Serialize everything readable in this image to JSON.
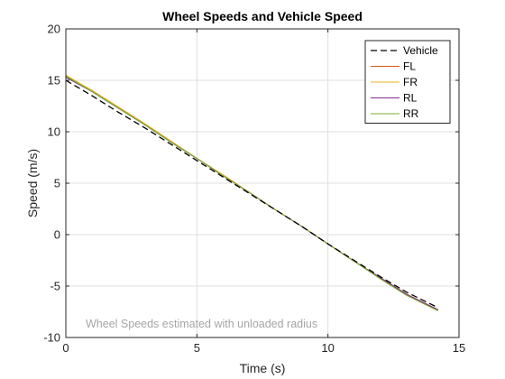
{
  "chart_data": {
    "type": "line",
    "title": "Wheel Speeds and Vehicle Speed",
    "xlabel": "Time (s)",
    "ylabel": "Speed (m/s)",
    "xlim": [
      0,
      15
    ],
    "ylim": [
      -10,
      20
    ],
    "xticks": [
      0,
      5,
      10,
      15
    ],
    "yticks": [
      -10,
      -5,
      0,
      5,
      10,
      15,
      20
    ],
    "xtick_labels": [
      "0",
      "5",
      "10",
      "15"
    ],
    "ytick_labels": [
      "-10",
      "-5",
      "0",
      "5",
      "10",
      "15",
      "20"
    ],
    "grid": true,
    "legend_position": "top-right",
    "annotation": "Wheel Speeds estimated with unloaded radius",
    "series": [
      {
        "name": "Vehicle",
        "color": "#000000",
        "dash": true,
        "x": [
          0,
          1,
          2,
          3,
          4,
          5,
          6,
          7,
          8,
          9,
          10,
          11,
          12,
          13,
          14.2
        ],
        "y": [
          15.0,
          13.5,
          11.9,
          10.4,
          8.8,
          7.2,
          5.6,
          4.0,
          2.4,
          0.8,
          -0.9,
          -2.5,
          -4.1,
          -5.6,
          -7.1
        ]
      },
      {
        "name": "FL",
        "color": "#d95319",
        "dash": false,
        "x": [
          0,
          1,
          2,
          3,
          4,
          5,
          6,
          7,
          8,
          9,
          10,
          11,
          12,
          13,
          14.2
        ],
        "y": [
          15.4,
          14.0,
          12.4,
          10.8,
          9.1,
          7.4,
          5.8,
          4.1,
          2.4,
          0.8,
          -0.9,
          -2.6,
          -4.2,
          -5.8,
          -7.3
        ]
      },
      {
        "name": "FR",
        "color": "#edb120",
        "dash": false,
        "x": [
          0,
          1,
          2,
          3,
          4,
          5,
          6,
          7,
          8,
          9,
          10,
          11,
          12,
          13,
          14.2
        ],
        "y": [
          15.5,
          14.0,
          12.4,
          10.8,
          9.1,
          7.4,
          5.8,
          4.1,
          2.4,
          0.8,
          -0.9,
          -2.6,
          -4.2,
          -5.8,
          -7.4
        ]
      },
      {
        "name": "RL",
        "color": "#7e2f8e",
        "dash": false,
        "x": [
          0,
          1,
          2,
          3,
          4,
          5,
          6,
          7,
          8,
          9,
          10,
          11,
          12,
          13,
          14.2
        ],
        "y": [
          15.3,
          13.9,
          12.3,
          10.7,
          9.0,
          7.4,
          5.7,
          4.1,
          2.4,
          0.8,
          -0.9,
          -2.6,
          -4.2,
          -5.8,
          -7.3
        ]
      },
      {
        "name": "RR",
        "color": "#77ac30",
        "dash": false,
        "x": [
          0,
          1,
          2,
          3,
          4,
          5,
          6,
          7,
          8,
          9,
          10,
          11,
          12,
          13,
          14.2
        ],
        "y": [
          15.4,
          13.9,
          12.3,
          10.7,
          9.0,
          7.4,
          5.7,
          4.1,
          2.4,
          0.8,
          -0.9,
          -2.6,
          -4.3,
          -5.9,
          -7.4
        ]
      }
    ]
  }
}
